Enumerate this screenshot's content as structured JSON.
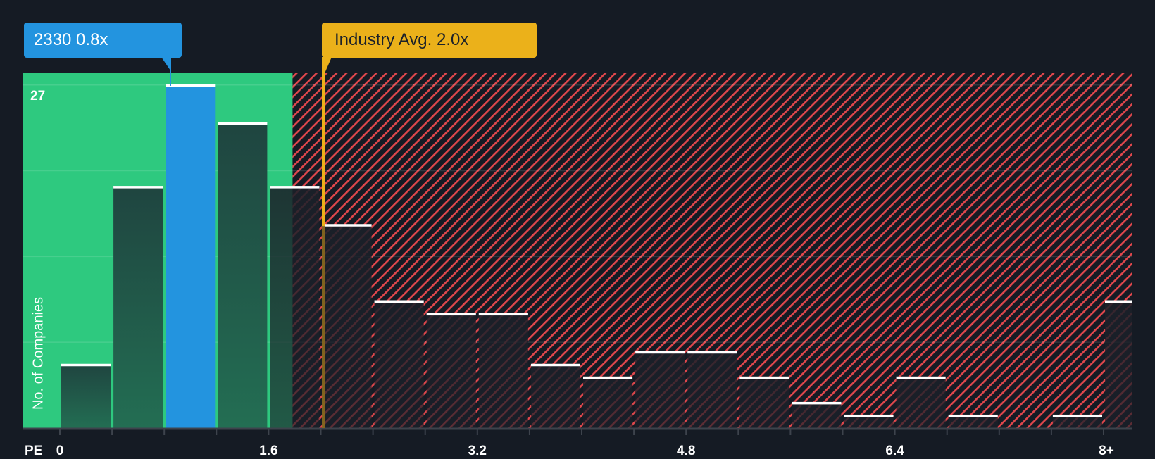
{
  "chart_data": {
    "type": "bar",
    "title": "",
    "xlabel": "PE",
    "ylabel": "No. of Companies",
    "y_max_label": "27",
    "ylim": [
      0,
      27
    ],
    "gridlines": [
      6.75,
      13.5,
      20.25,
      27
    ],
    "bin_width": 0.4,
    "categories": [
      "0-0.4",
      "0.4-0.8",
      "0.8-1.2",
      "1.2-1.6",
      "1.6-2.0",
      "2.0-2.4",
      "2.4-2.8",
      "2.8-3.2",
      "3.2-3.6",
      "3.6-4.0",
      "4.0-4.4",
      "4.4-4.8",
      "4.8-5.2",
      "5.2-5.6",
      "5.6-6.0",
      "6.0-6.4",
      "6.4-6.8",
      "6.8-7.2",
      "7.2-7.6",
      "7.6-8.0",
      "8+"
    ],
    "values": [
      5,
      19,
      27,
      24,
      19,
      16,
      10,
      9,
      9,
      5,
      4,
      6,
      6,
      4,
      2,
      1,
      4,
      1,
      0,
      1,
      10
    ],
    "highlight_index": 2,
    "x_tick_labels": [
      {
        "value": 0,
        "label": "0"
      },
      {
        "value": 1.6,
        "label": "1.6"
      },
      {
        "value": 3.2,
        "label": "3.2"
      },
      {
        "value": 4.8,
        "label": "4.8"
      },
      {
        "value": 6.4,
        "label": "6.4"
      },
      {
        "value": 8,
        "label": "8+"
      }
    ],
    "annotations": [
      {
        "label": "2330 0.8x",
        "value": 0.8,
        "color": "#2394DF"
      },
      {
        "label": "Industry Avg. 2.0x",
        "value": 2.0,
        "color": "#EBB11A"
      }
    ],
    "zones": [
      {
        "name": "below-industry",
        "from": 0,
        "to": 1.8,
        "color": "#2EC97F"
      },
      {
        "name": "above-industry",
        "from": 1.8,
        "to": 8.4,
        "color": "#E0474C",
        "pattern": "hatched"
      }
    ]
  },
  "callouts": {
    "company": "2330 0.8x",
    "industry": "Industry Avg. 2.0x"
  },
  "axis": {
    "x_title": "PE",
    "y_title": "No. of Companies",
    "y_max": "27"
  },
  "colors": {
    "background": "#151B24",
    "green_zone": "#2EC97F",
    "hatch": "#E0474C",
    "highlight_bar": "#2394DF",
    "industry_line": "#EBB11A",
    "bar_top": "#ffffff"
  }
}
